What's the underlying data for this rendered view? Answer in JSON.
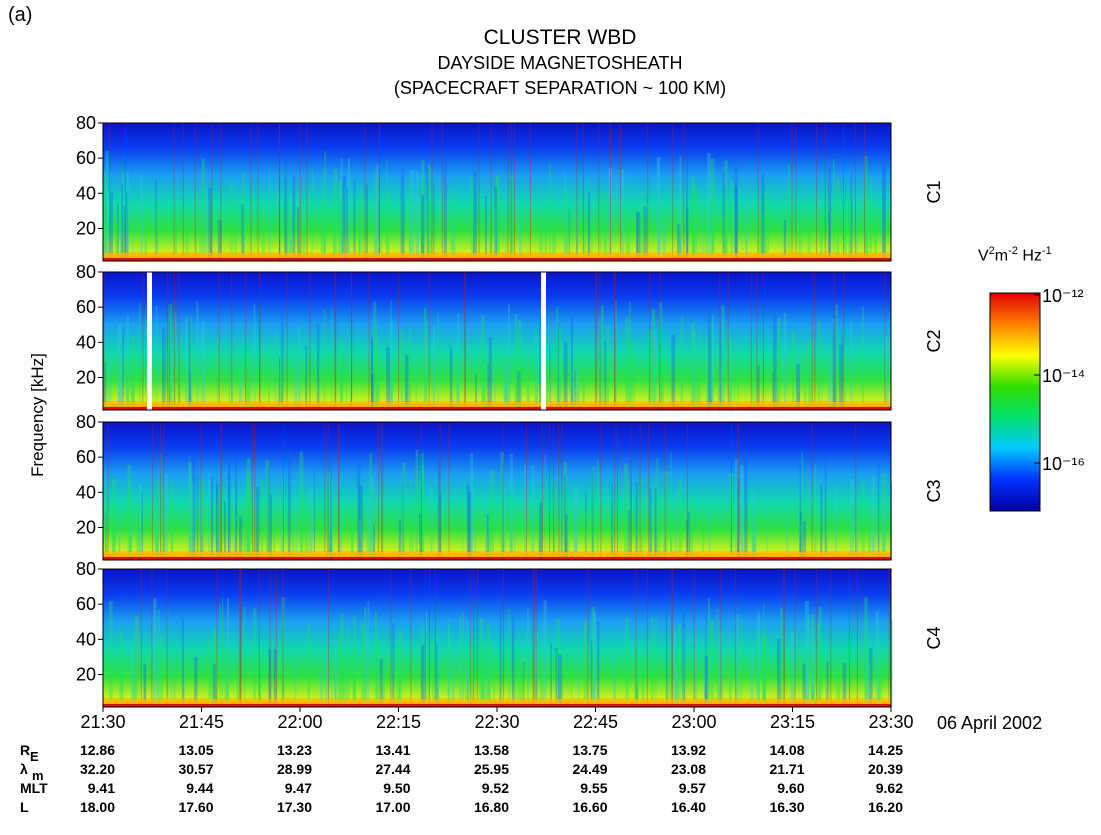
{
  "figure_label": "(a)",
  "title": "CLUSTER  WBD",
  "subtitle1": "DAYSIDE MAGNETOSHEATH",
  "subtitle2": "(SPACECRAFT SEPARATION ~ 100 KM)",
  "date": "06 April 2002",
  "colorbar": {
    "unit_label": "V²m⁻² Hz⁻¹",
    "ticks": [
      "10⁻¹²",
      "10⁻¹⁴",
      "10⁻¹⁶"
    ],
    "colors": [
      "#0000a0",
      "#0030ff",
      "#00c8ff",
      "#00e070",
      "#30e000",
      "#ffff00",
      "#ff8000",
      "#e00000"
    ]
  },
  "chart_data": {
    "type": "heatmap",
    "ylabel": "Frequency [kHz]",
    "ylim": [
      0,
      80
    ],
    "yticks": [
      "20",
      "40",
      "60",
      "80"
    ],
    "xticks": [
      "21:30",
      "21:45",
      "22:00",
      "22:15",
      "22:30",
      "22:45",
      "23:00",
      "23:15",
      "23:30"
    ],
    "panels": [
      {
        "name": "C1",
        "data_gaps": []
      },
      {
        "name": "C2",
        "data_gaps": [
          "21:37",
          "22:37"
        ]
      },
      {
        "name": "C3",
        "data_gaps": []
      },
      {
        "name": "C4",
        "data_gaps": []
      }
    ],
    "color_scale": "log",
    "color_range": [
      "10⁻¹⁷",
      "10⁻¹²"
    ]
  },
  "ephemeris": {
    "rows": [
      {
        "label": "R",
        "sub": "E",
        "values": [
          "12.86",
          "13.05",
          "13.23",
          "13.41",
          "13.58",
          "13.75",
          "13.92",
          "14.08",
          "14.25"
        ]
      },
      {
        "label": "λ",
        "sub": "m",
        "values": [
          "32.20",
          "30.57",
          "28.99",
          "27.44",
          "25.95",
          "24.49",
          "23.08",
          "21.71",
          "20.39"
        ]
      },
      {
        "label": "MLT",
        "sub": "",
        "values": [
          "9.41",
          "9.44",
          "9.47",
          "9.50",
          "9.52",
          "9.55",
          "9.57",
          "9.60",
          "9.62"
        ]
      },
      {
        "label": "L",
        "sub": "",
        "values": [
          "18.00",
          "17.60",
          "17.30",
          "17.00",
          "16.80",
          "16.60",
          "16.40",
          "16.30",
          "16.20"
        ]
      }
    ]
  }
}
